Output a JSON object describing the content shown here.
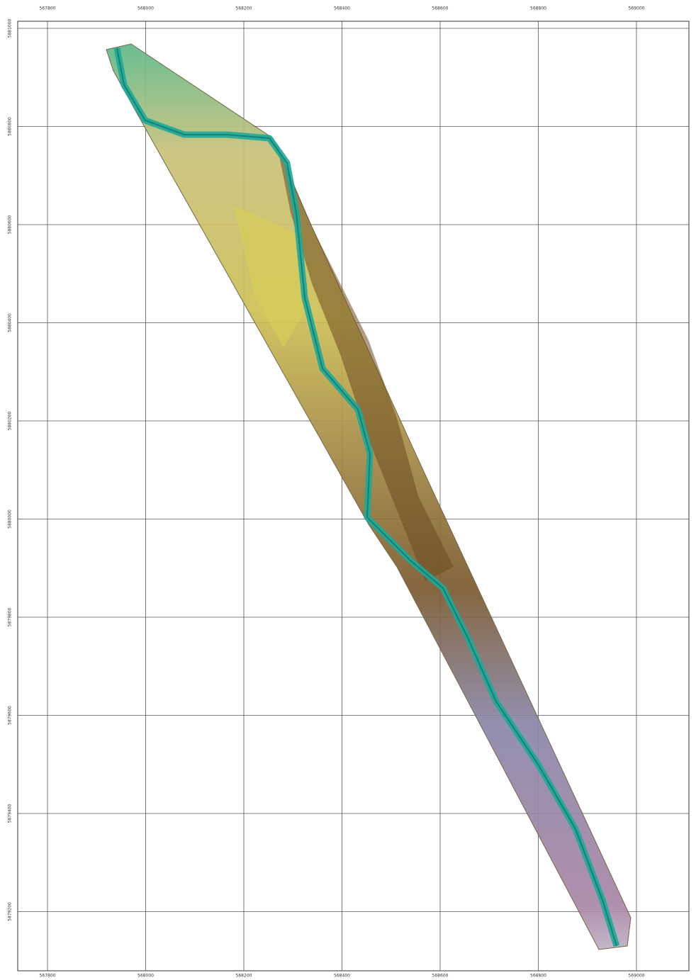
{
  "map_data": {
    "xticks": [
      "567800",
      "568000",
      "568200",
      "568400",
      "568600",
      "568800",
      "569000"
    ],
    "yticks": [
      "5881000",
      "5880800",
      "5880600",
      "5880400",
      "5880200",
      "5880000",
      "5879800",
      "5879600",
      "5879400",
      "5879200"
    ]
  }
}
